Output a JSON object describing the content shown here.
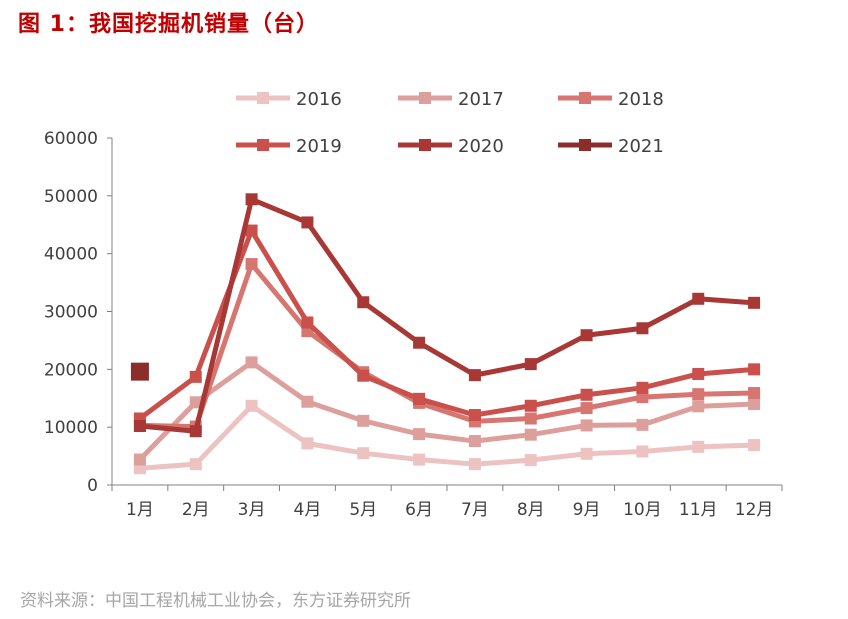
{
  "figure": {
    "title": "图 1：我国挖掘机销量（台）",
    "source": "资料来源：中国工程机械工业协会，东方证券研究所"
  },
  "chart_data": {
    "type": "line",
    "title": "我国挖掘机销量（台）",
    "xlabel": "",
    "ylabel": "",
    "ylim": [
      0,
      60000
    ],
    "yticks": [
      0,
      10000,
      20000,
      30000,
      40000,
      50000,
      60000
    ],
    "categories": [
      "1月",
      "2月",
      "3月",
      "4月",
      "5月",
      "6月",
      "7月",
      "8月",
      "9月",
      "10月",
      "11月",
      "12月"
    ],
    "grid": false,
    "legend_position": "top",
    "series": [
      {
        "name": "2016",
        "color": "#ecc3c1",
        "values": [
          2900,
          3600,
          13700,
          7200,
          5500,
          4400,
          3600,
          4300,
          5400,
          5800,
          6600,
          6900
        ]
      },
      {
        "name": "2017",
        "color": "#dd9f9b",
        "values": [
          4400,
          14300,
          21200,
          14400,
          11100,
          8800,
          7600,
          8700,
          10300,
          10400,
          13600,
          14000
        ]
      },
      {
        "name": "2018",
        "color": "#d77571",
        "values": [
          10300,
          10100,
          38200,
          26600,
          19500,
          14200,
          11000,
          11500,
          13300,
          15200,
          15700,
          15900
        ]
      },
      {
        "name": "2019",
        "color": "#c9504b",
        "values": [
          11500,
          18700,
          44000,
          28100,
          18900,
          14900,
          12100,
          13700,
          15600,
          16800,
          19200,
          20000
        ]
      },
      {
        "name": "2020",
        "color": "#a83835",
        "values": [
          10200,
          9300,
          49400,
          45400,
          31600,
          24600,
          19000,
          20900,
          25900,
          27100,
          32200,
          31500
        ]
      },
      {
        "name": "2021",
        "color": "#8b2e2b",
        "values": [
          19600,
          null,
          null,
          null,
          null,
          null,
          null,
          null,
          null,
          null,
          null,
          null
        ]
      }
    ]
  }
}
